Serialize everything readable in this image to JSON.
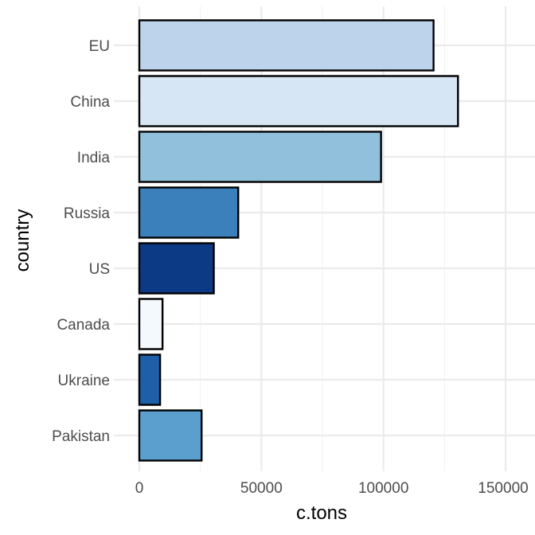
{
  "chart_data": {
    "type": "bar",
    "orientation": "horizontal",
    "categories": [
      "EU",
      "China",
      "India",
      "Russia",
      "US",
      "Canada",
      "Ukraine",
      "Pakistan"
    ],
    "values": [
      120500,
      130500,
      99000,
      40500,
      30500,
      9500,
      8500,
      25500
    ],
    "colors": [
      "#bcd3eb",
      "#d6e6f4",
      "#91c0dd",
      "#3c80bb",
      "#0d3a84",
      "#f4f9fe",
      "#1f5ea8",
      "#5b9fcf"
    ],
    "bar_outline": "#000000",
    "xlabel": "c.tons",
    "ylabel": "country",
    "xlim": [
      -2000,
      154000
    ],
    "xticks": [
      0,
      50000,
      100000,
      150000
    ],
    "xtick_labels": [
      "0",
      "50000",
      "100000",
      "150000"
    ],
    "grid": true,
    "legend": "none",
    "theme": "minimal"
  }
}
